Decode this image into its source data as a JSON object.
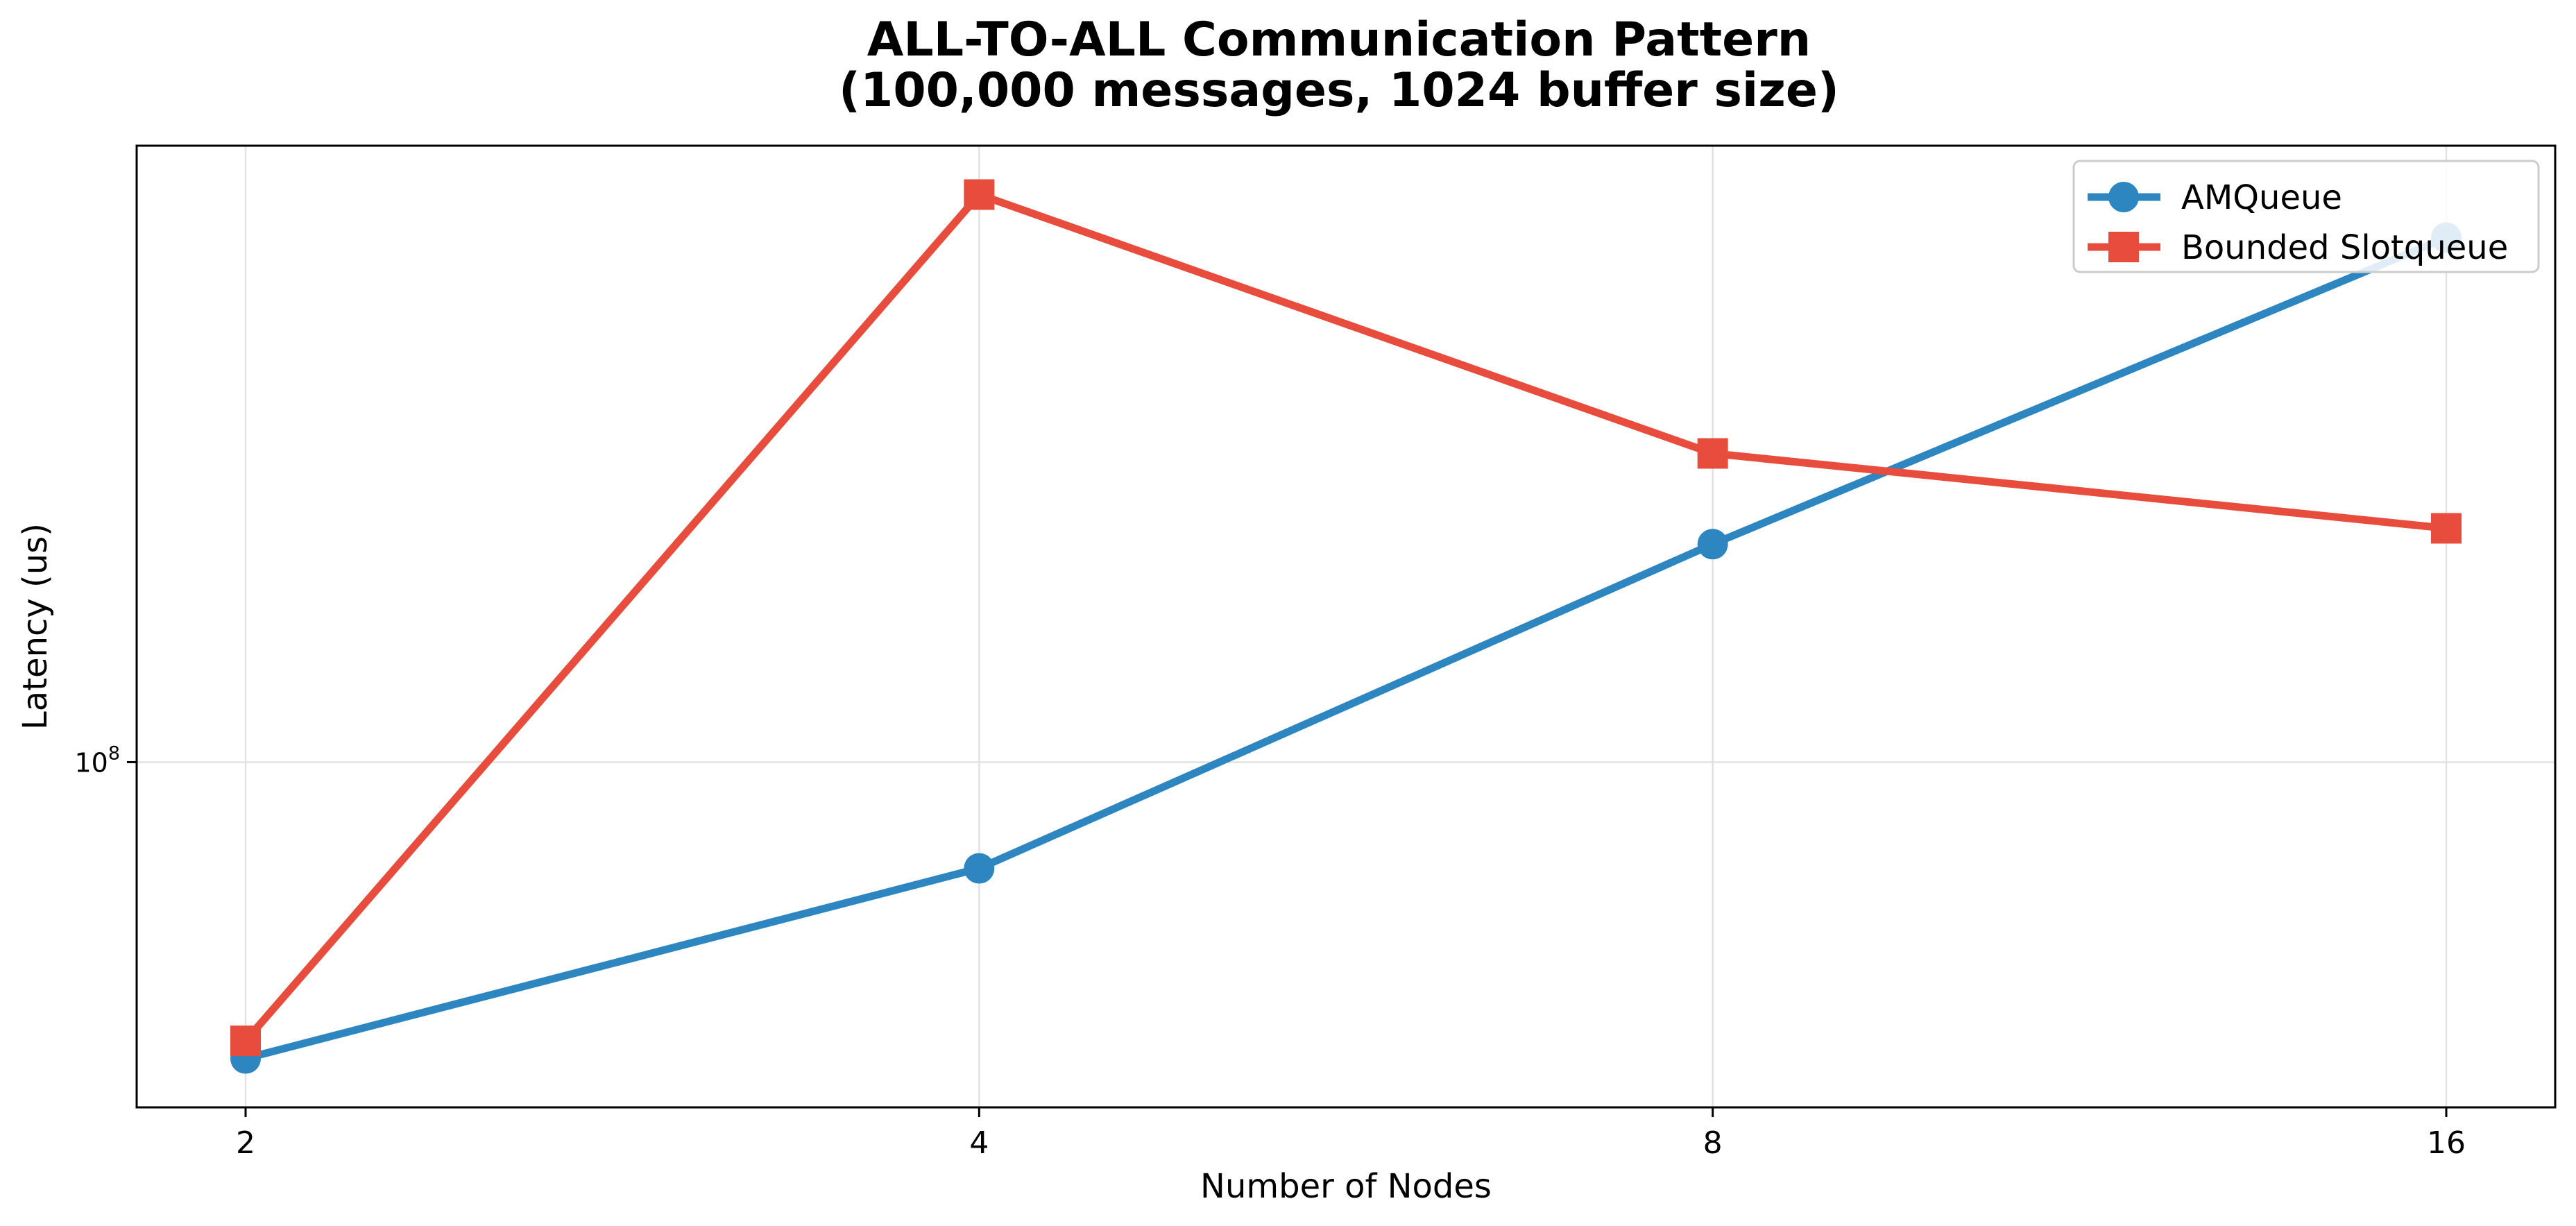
{
  "chart_data": {
    "type": "line",
    "title_lines": [
      "ALL-TO-ALL Communication Pattern",
      "(100,000 messages, 1024 buffer size)"
    ],
    "xlabel": "Number of Nodes",
    "ylabel": "Latency (us)",
    "x": [
      2,
      4,
      8,
      16
    ],
    "x_tick_labels": [
      "2",
      "4",
      "8",
      "16"
    ],
    "x_scale": "log2",
    "y_scale": "log",
    "ylim": [
      66000000,
      210000000
    ],
    "y_ticks": [
      {
        "value": 100000000,
        "base": "10",
        "exponent": "8"
      }
    ],
    "grid": true,
    "legend_position": "upper-right",
    "series": [
      {
        "name": "AMQueue",
        "color": "#2e86c1",
        "marker": "circle",
        "values": [
          70000000,
          88000000,
          130000000,
          188000000
        ]
      },
      {
        "name": "Bounded Slotqueue",
        "color": "#e74c3c",
        "marker": "square",
        "values": [
          71500000,
          198000000,
          145000000,
          132500000
        ]
      }
    ]
  }
}
